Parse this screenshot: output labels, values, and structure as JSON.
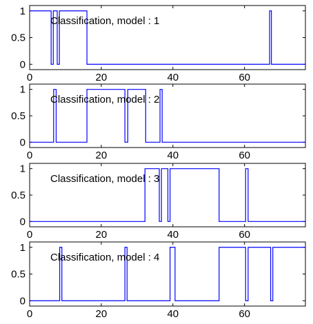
{
  "chart_data": [
    {
      "type": "line",
      "title": "Classification, model : 1",
      "xlim": [
        0,
        77
      ],
      "ylim": [
        -0.1,
        1.1
      ],
      "xticks": [
        0,
        20,
        40,
        60
      ],
      "yticks": [
        0,
        0.5,
        1
      ],
      "xtick_labels": [
        "0",
        "20",
        "40",
        "60"
      ],
      "ytick_labels": [
        "0",
        "0.5",
        "1"
      ],
      "grid": false,
      "color": "#0000ff",
      "step": "post",
      "x": [
        0,
        6,
        6.6,
        7.7,
        8.3,
        16,
        67,
        67.5
      ],
      "y": [
        1,
        0,
        1,
        0,
        1,
        0,
        1,
        0
      ]
    },
    {
      "type": "line",
      "title": "Classification, model : 2",
      "xlim": [
        0,
        77
      ],
      "ylim": [
        -0.1,
        1.1
      ],
      "xticks": [
        0,
        20,
        40,
        60
      ],
      "yticks": [
        0,
        0.5,
        1
      ],
      "xtick_labels": [
        "0",
        "20",
        "40",
        "60"
      ],
      "ytick_labels": [
        "0",
        "0.5",
        "1"
      ],
      "grid": false,
      "color": "#0000ff",
      "step": "post",
      "x": [
        0,
        6.7,
        7.4,
        16,
        26.6,
        27.4,
        32.4,
        36.4,
        37
      ],
      "y": [
        0,
        1,
        0,
        1,
        0,
        1,
        0,
        1,
        0
      ]
    },
    {
      "type": "line",
      "title": "Classification, model : 3",
      "xlim": [
        0,
        77
      ],
      "ylim": [
        -0.1,
        1.1
      ],
      "xticks": [
        0,
        20,
        40,
        60
      ],
      "yticks": [
        0,
        0.5,
        1
      ],
      "xtick_labels": [
        "0",
        "20",
        "40",
        "60"
      ],
      "ytick_labels": [
        "0",
        "0.5",
        "1"
      ],
      "grid": false,
      "color": "#0000ff",
      "step": "post",
      "x": [
        0,
        32.2,
        36.2,
        36.8,
        38.6,
        39.2,
        52.9,
        60.3,
        61
      ],
      "y": [
        0,
        1,
        0,
        1,
        0,
        1,
        0,
        1,
        0
      ]
    },
    {
      "type": "line",
      "title": "Classification, model : 4",
      "xlim": [
        0,
        77
      ],
      "ylim": [
        -0.1,
        1.1
      ],
      "xticks": [
        0,
        20,
        40,
        60
      ],
      "yticks": [
        0,
        0.5,
        1
      ],
      "xtick_labels": [
        "0",
        "20",
        "40",
        "60"
      ],
      "ytick_labels": [
        "0",
        "0.5",
        "1"
      ],
      "grid": false,
      "color": "#0000ff",
      "step": "post",
      "x": [
        0,
        8.4,
        9,
        26.6,
        27.2,
        39.2,
        40.6,
        52.9,
        60.3,
        61,
        67.3,
        67.9
      ],
      "y": [
        0,
        1,
        0,
        1,
        0,
        1,
        0,
        1,
        0,
        1,
        0,
        1
      ]
    }
  ]
}
